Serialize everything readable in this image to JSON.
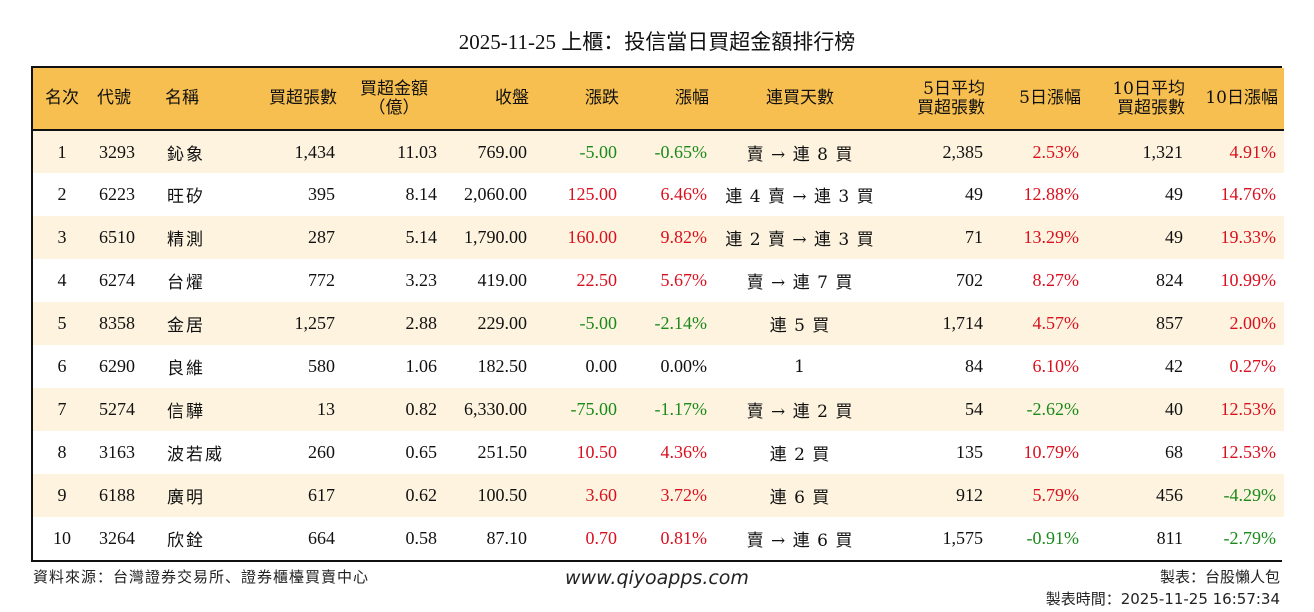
{
  "title": "2025-11-25 上櫃：投信當日買超金額排行榜",
  "colors": {
    "header_bg": "#f7bf4f",
    "row_odd_bg": "#fdf3df",
    "row_even_bg": "#ffffff",
    "up": "#d9111f",
    "down": "#1b8a1b"
  },
  "columns": {
    "rank": "名次",
    "code": "代號",
    "name": "名稱",
    "net_buy_lots": "買超張數",
    "net_buy_amount_l1": "買超金額",
    "net_buy_amount_l2": "（億）",
    "close": "收盤",
    "change": "漲跌",
    "change_pct": "漲幅",
    "streak": "連買天數",
    "avg5_l1": "5日平均",
    "avg5_l2": "買超張數",
    "pct5": "5日漲幅",
    "avg10_l1": "10日平均",
    "avg10_l2": "買超張數",
    "pct10": "10日漲幅"
  },
  "rows": [
    {
      "rank": "1",
      "code": "3293",
      "name": "鈊象",
      "lots": "1,434",
      "amount": "11.03",
      "close": "769.00",
      "change": "-5.00",
      "change_pct": "-0.65%",
      "streak": "賣 → 連 8 買",
      "avg5": "2,385",
      "pct5": "2.53%",
      "avg10": "1,321",
      "pct10": "4.91%"
    },
    {
      "rank": "2",
      "code": "6223",
      "name": "旺矽",
      "lots": "395",
      "amount": "8.14",
      "close": "2,060.00",
      "change": "125.00",
      "change_pct": "6.46%",
      "streak": "連 4 賣 → 連 3 買",
      "avg5": "49",
      "pct5": "12.88%",
      "avg10": "49",
      "pct10": "14.76%"
    },
    {
      "rank": "3",
      "code": "6510",
      "name": "精測",
      "lots": "287",
      "amount": "5.14",
      "close": "1,790.00",
      "change": "160.00",
      "change_pct": "9.82%",
      "streak": "連 2 賣 → 連 3 買",
      "avg5": "71",
      "pct5": "13.29%",
      "avg10": "49",
      "pct10": "19.33%"
    },
    {
      "rank": "4",
      "code": "6274",
      "name": "台燿",
      "lots": "772",
      "amount": "3.23",
      "close": "419.00",
      "change": "22.50",
      "change_pct": "5.67%",
      "streak": "賣 → 連 7 買",
      "avg5": "702",
      "pct5": "8.27%",
      "avg10": "824",
      "pct10": "10.99%"
    },
    {
      "rank": "5",
      "code": "8358",
      "name": "金居",
      "lots": "1,257",
      "amount": "2.88",
      "close": "229.00",
      "change": "-5.00",
      "change_pct": "-2.14%",
      "streak": "連 5 買",
      "avg5": "1,714",
      "pct5": "4.57%",
      "avg10": "857",
      "pct10": "2.00%"
    },
    {
      "rank": "6",
      "code": "6290",
      "name": "良維",
      "lots": "580",
      "amount": "1.06",
      "close": "182.50",
      "change": "0.00",
      "change_pct": "0.00%",
      "streak": "1",
      "avg5": "84",
      "pct5": "6.10%",
      "avg10": "42",
      "pct10": "0.27%"
    },
    {
      "rank": "7",
      "code": "5274",
      "name": "信驊",
      "lots": "13",
      "amount": "0.82",
      "close": "6,330.00",
      "change": "-75.00",
      "change_pct": "-1.17%",
      "streak": "賣 → 連 2 買",
      "avg5": "54",
      "pct5": "-2.62%",
      "avg10": "40",
      "pct10": "12.53%"
    },
    {
      "rank": "8",
      "code": "3163",
      "name": "波若威",
      "lots": "260",
      "amount": "0.65",
      "close": "251.50",
      "change": "10.50",
      "change_pct": "4.36%",
      "streak": "連 2 買",
      "avg5": "135",
      "pct5": "10.79%",
      "avg10": "68",
      "pct10": "12.53%"
    },
    {
      "rank": "9",
      "code": "6188",
      "name": "廣明",
      "lots": "617",
      "amount": "0.62",
      "close": "100.50",
      "change": "3.60",
      "change_pct": "3.72%",
      "streak": "連 6 買",
      "avg5": "912",
      "pct5": "5.79%",
      "avg10": "456",
      "pct10": "-4.29%"
    },
    {
      "rank": "10",
      "code": "3264",
      "name": "欣銓",
      "lots": "664",
      "amount": "0.58",
      "close": "87.10",
      "change": "0.70",
      "change_pct": "0.81%",
      "streak": "賣 → 連 6 買",
      "avg5": "1,575",
      "pct5": "-0.91%",
      "avg10": "811",
      "pct10": "-2.79%"
    }
  ],
  "footer": {
    "source": "資料來源：台灣證券交易所、證券櫃檯買賣中心",
    "website": "www.qiyoapps.com",
    "maker": "製表：台股懶人包",
    "made_time": "製表時間：2025-11-25 16:57:34"
  }
}
